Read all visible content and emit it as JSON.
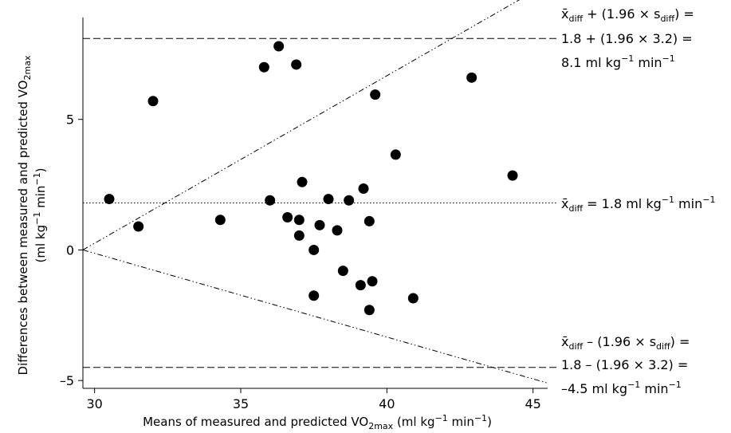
{
  "chart_data": {
    "type": "scatter",
    "xlabel_main": "Means of measured and predicted ",
    "xlabel_vo": "VO",
    "xlabel_sub": "2max",
    "xlabel_units_a": " (ml kg",
    "xlabel_units_exp": "−1",
    "xlabel_units_b": " min",
    "xlabel_units_exp2": "−1",
    "xlabel_units_c": ")",
    "ylabel_line1_a": "Differences between measured and predicted ",
    "ylabel_line1_vo": "VO",
    "ylabel_line1_sub": "2max",
    "ylabel_line2_a": "(ml kg",
    "ylabel_line2_exp": "−1",
    "ylabel_line2_b": " min",
    "ylabel_line2_exp2": "−1",
    "ylabel_line2_c": ")",
    "xlim": [
      29.6,
      45.5
    ],
    "ylim": [
      -5.3,
      8.9
    ],
    "x_ticks": [
      30,
      35,
      40,
      45
    ],
    "x_tick_labels": [
      "30",
      "35",
      "40",
      "45"
    ],
    "y_ticks": [
      -5,
      0,
      5
    ],
    "y_tick_labels": [
      "–5",
      "0",
      "5"
    ],
    "points": [
      {
        "x": 30.5,
        "y": 1.95
      },
      {
        "x": 31.5,
        "y": 0.9
      },
      {
        "x": 32.0,
        "y": 5.7
      },
      {
        "x": 34.3,
        "y": 1.15
      },
      {
        "x": 35.8,
        "y": 7.0
      },
      {
        "x": 36.0,
        "y": 1.9
      },
      {
        "x": 36.3,
        "y": 7.8
      },
      {
        "x": 36.6,
        "y": 1.25
      },
      {
        "x": 36.9,
        "y": 7.1
      },
      {
        "x": 37.0,
        "y": 1.15
      },
      {
        "x": 37.0,
        "y": 0.55
      },
      {
        "x": 37.1,
        "y": 2.6
      },
      {
        "x": 37.5,
        "y": 0.0
      },
      {
        "x": 37.5,
        "y": -1.75
      },
      {
        "x": 37.7,
        "y": 0.95
      },
      {
        "x": 38.0,
        "y": 1.95
      },
      {
        "x": 38.3,
        "y": 0.75
      },
      {
        "x": 38.5,
        "y": -0.8
      },
      {
        "x": 38.7,
        "y": 1.9
      },
      {
        "x": 39.1,
        "y": -1.35
      },
      {
        "x": 39.2,
        "y": 2.35
      },
      {
        "x": 39.4,
        "y": -2.3
      },
      {
        "x": 39.4,
        "y": 1.1
      },
      {
        "x": 39.5,
        "y": -1.2
      },
      {
        "x": 39.6,
        "y": 5.95
      },
      {
        "x": 40.3,
        "y": 3.65
      },
      {
        "x": 40.9,
        "y": -1.85
      },
      {
        "x": 42.9,
        "y": 6.6
      },
      {
        "x": 44.3,
        "y": 2.85
      }
    ],
    "mean_line": 1.8,
    "upper_limit": 8.1,
    "lower_limit": -4.5,
    "upper_diag": {
      "x": [
        29.6,
        45.5
      ],
      "y": [
        0,
        10.2
      ]
    },
    "lower_diag": {
      "x": [
        29.6,
        45.5
      ],
      "y": [
        0,
        -5.1
      ]
    },
    "annotations": {
      "upper_line1_a": "x̄",
      "upper_line1_sub": "diff",
      "upper_line1_b": " + (1.96 × s",
      "upper_line1_sub2": "diff",
      "upper_line1_c": ") =",
      "upper_line2": "1.8 + (1.96 × 3.2) =",
      "upper_line3_a": "8.1 ml kg",
      "upper_line3_exp": "−1",
      "upper_line3_b": " min",
      "upper_line3_exp2": "−1",
      "mean_a": "x̄",
      "mean_sub": "diff",
      "mean_b": " = 1.8 ml kg",
      "mean_exp": "−1",
      "mean_c": " min",
      "mean_exp2": "−1",
      "lower_line1_a": "x̄",
      "lower_line1_sub": "diff",
      "lower_line1_b": " – (1.96 × s",
      "lower_line1_sub2": "diff",
      "lower_line1_c": ") =",
      "lower_line2": "1.8 – (1.96 × 3.2) =",
      "lower_line3_a": "–4.5 ml kg",
      "lower_line3_exp": "−1",
      "lower_line3_b": " min",
      "lower_line3_exp2": "−1"
    },
    "colors": {
      "marker": "#000000",
      "line": "#000000"
    },
    "grid": false
  }
}
